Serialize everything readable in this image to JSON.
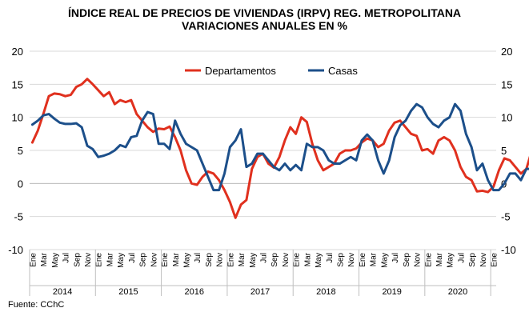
{
  "chart_data": {
    "type": "line",
    "title_line1": "ÍNDICE REAL DE PRECIOS DE VIVIENDAS (IRPV) REG. METROPOLITANA",
    "title_line2": "VARIACIONES ANUALES EN %",
    "source": "Fuente: CChC",
    "ylim": [
      -10,
      20
    ],
    "yticks": [
      -10,
      -5,
      0,
      5,
      10,
      15,
      20
    ],
    "y_axis_both_sides": true,
    "grid": "horizontal",
    "legend_position": "top-center",
    "month_labels": [
      "Ene",
      "Mar",
      "May",
      "Jul",
      "Sep",
      "Nov",
      "Ene",
      "Mar",
      "May",
      "Jul",
      "Sep",
      "Nov",
      "Ene",
      "Mar",
      "May",
      "Jul",
      "Sep",
      "Nov",
      "Ene",
      "Mar",
      "May",
      "Jul",
      "Sep",
      "Nov",
      "Ene",
      "Mar",
      "May",
      "Jul",
      "Sep",
      "Nov",
      "Ene",
      "Mar",
      "May",
      "Jul",
      "Sep",
      "Nov",
      "Ene",
      "Mar",
      "May",
      "Jul",
      "Sep",
      "Nov",
      "Ene"
    ],
    "years": [
      "2014",
      "2015",
      "2016",
      "2017",
      "2018",
      "2019",
      "2020"
    ],
    "x_start": "2014-01",
    "x_end": "2021-01",
    "series": [
      {
        "name": "Departamentos",
        "color": "#e0301e",
        "values": [
          6.2,
          8.0,
          10.5,
          13.2,
          13.6,
          13.5,
          13.2,
          13.4,
          14.6,
          15.0,
          15.8,
          15.0,
          14.1,
          13.2,
          13.8,
          12.0,
          12.6,
          12.3,
          12.6,
          10.5,
          9.5,
          8.5,
          7.8,
          8.3,
          8.2,
          8.6,
          7.0,
          5.0,
          2.0,
          0.0,
          -0.2,
          1.0,
          1.8,
          1.5,
          0.5,
          -1.0,
          -2.8,
          -5.2,
          -3.2,
          -2.5,
          2.2,
          4.0,
          4.5,
          3.0,
          2.4,
          4.0,
          6.5,
          8.5,
          7.5,
          10.0,
          9.3,
          6.0,
          3.5,
          2.0,
          2.5,
          3.0,
          4.5,
          5.0,
          5.0,
          5.3,
          6.2,
          6.8,
          6.5,
          5.5,
          6.0,
          8.0,
          9.2,
          9.5,
          8.5,
          7.5,
          7.2,
          5.0,
          5.2,
          4.5,
          6.5,
          7.0,
          6.5,
          5.0,
          2.5,
          1.0,
          0.5,
          -1.2,
          -1.1,
          -1.3,
          -0.5,
          2.0,
          3.8,
          3.5,
          2.5,
          1.5,
          2.2,
          5.0
        ]
      },
      {
        "name": "Casas",
        "color": "#1c4f8a",
        "values": [
          8.9,
          9.5,
          10.3,
          10.5,
          9.8,
          9.2,
          9.0,
          9.0,
          9.1,
          8.5,
          5.7,
          5.2,
          4.0,
          4.2,
          4.5,
          5.0,
          5.8,
          5.5,
          7.0,
          7.2,
          9.5,
          10.8,
          10.5,
          6.0,
          6.0,
          5.2,
          9.5,
          7.5,
          6.0,
          5.5,
          5.0,
          3.0,
          1.0,
          -1.0,
          -1.0,
          1.5,
          5.5,
          6.5,
          8.2,
          2.5,
          3.0,
          4.5,
          4.5,
          3.5,
          2.5,
          2.0,
          3.0,
          2.0,
          2.8,
          2.0,
          6.0,
          5.5,
          5.5,
          5.0,
          3.5,
          3.0,
          3.0,
          3.5,
          4.0,
          3.5,
          6.5,
          7.4,
          6.5,
          3.5,
          1.5,
          3.5,
          7.0,
          8.8,
          9.5,
          11.0,
          12.0,
          11.5,
          10.0,
          9.0,
          8.5,
          9.5,
          10.0,
          12.0,
          11.0,
          7.5,
          5.5,
          2.0,
          3.0,
          0.5,
          -1.0,
          -1.0,
          0.0,
          1.5,
          1.5,
          0.5,
          2.2,
          2.2
        ]
      }
    ]
  }
}
